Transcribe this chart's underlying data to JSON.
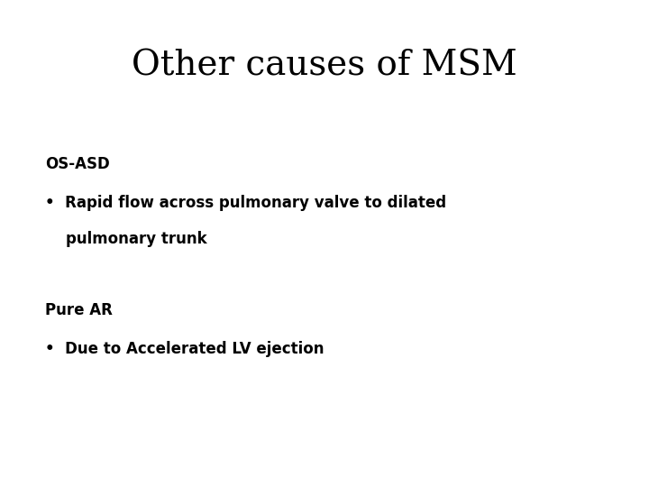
{
  "title": "Other causes of MSM",
  "title_fontsize": 28,
  "title_font": "serif",
  "title_weight": "normal",
  "background_color": "#ffffff",
  "text_color": "#000000",
  "section1_label": "OS-ASD",
  "section1_bullet_line1": "•  Rapid flow across pulmonary valve to dilated",
  "section1_bullet_line2": "    pulmonary trunk",
  "section2_label": "Pure AR",
  "section2_bullet": "•  Due to Accelerated LV ejection",
  "label_fontsize": 12,
  "bullet_fontsize": 12,
  "label_font": "DejaVu Sans",
  "label_weight": "bold"
}
